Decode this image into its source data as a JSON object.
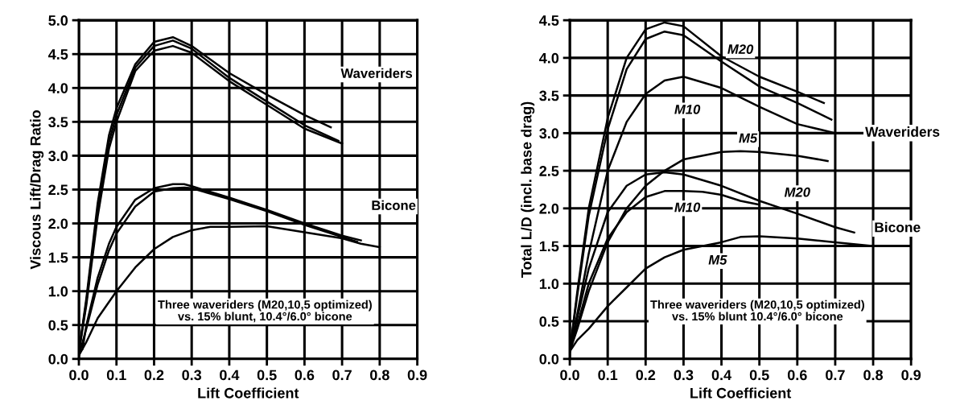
{
  "chart_data": [
    {
      "type": "line",
      "xlabel": "Lift Coefficient",
      "ylabel": "Viscous Lift/Drag Ratio",
      "xlim": [
        0,
        0.9
      ],
      "ylim": [
        0,
        5
      ],
      "xticks": [
        {
          "value": 0,
          "label": "0.0"
        },
        0.1,
        0.2,
        0.3,
        0.4,
        0.5,
        0.6,
        0.7,
        0.8,
        0.9
      ],
      "yticks": [
        {
          "value": 0,
          "label": "0.0"
        },
        0.5,
        {
          "value": 1,
          "label": "1.0"
        },
        1.5,
        {
          "value": 2,
          "label": "2.0"
        },
        2.5,
        {
          "value": 3,
          "label": "3.0"
        },
        3.5,
        {
          "value": 4,
          "label": "4.0"
        },
        4.5,
        {
          "value": 5,
          "label": "5.0"
        }
      ],
      "grid": true,
      "marker": "none",
      "line_style": "solid",
      "series": [
        {
          "color": "#000000",
          "x": [
            0,
            0.02,
            0.05,
            0.08,
            0.1,
            0.15,
            0.2,
            0.25,
            0.3,
            0.4,
            0.5,
            0.6,
            0.67
          ],
          "values": [
            0.1,
            0.9,
            2.3,
            3.3,
            3.7,
            4.35,
            4.68,
            4.75,
            4.62,
            4.22,
            3.9,
            3.6,
            3.42
          ]
        },
        {
          "color": "#000000",
          "x": [
            0,
            0.02,
            0.05,
            0.08,
            0.1,
            0.15,
            0.2,
            0.25,
            0.3,
            0.4,
            0.5,
            0.6,
            0.69
          ],
          "values": [
            0.1,
            0.85,
            2.2,
            3.2,
            3.6,
            4.3,
            4.62,
            4.7,
            4.58,
            4.15,
            3.8,
            3.45,
            3.22
          ]
        },
        {
          "color": "#000000",
          "x": [
            0,
            0.02,
            0.05,
            0.08,
            0.1,
            0.15,
            0.2,
            0.25,
            0.3,
            0.4,
            0.5,
            0.6,
            0.7
          ],
          "values": [
            0.1,
            0.8,
            2.1,
            3.1,
            3.5,
            4.25,
            4.55,
            4.62,
            4.52,
            4.1,
            3.75,
            3.4,
            3.18
          ]
        },
        {
          "color": "#000000",
          "x": [
            0.01,
            0.02,
            0.05,
            0.08,
            0.1,
            0.15,
            0.2,
            0.25,
            0.28,
            0.3,
            0.4,
            0.5,
            0.6,
            0.7,
            0.75
          ],
          "values": [
            0.15,
            0.5,
            1.2,
            1.7,
            1.95,
            2.35,
            2.52,
            2.58,
            2.58,
            2.55,
            2.38,
            2.2,
            2.0,
            1.82,
            1.75
          ]
        },
        {
          "color": "#000000",
          "x": [
            0,
            0.02,
            0.05,
            0.08,
            0.1,
            0.15,
            0.2,
            0.25,
            0.28,
            0.3,
            0.4,
            0.5,
            0.6,
            0.7,
            0.74
          ],
          "values": [
            0.05,
            0.45,
            1.1,
            1.6,
            1.85,
            2.25,
            2.47,
            2.52,
            2.53,
            2.52,
            2.36,
            2.18,
            1.98,
            1.8,
            1.73
          ]
        },
        {
          "color": "#000000",
          "x": [
            0,
            0.02,
            0.05,
            0.1,
            0.15,
            0.2,
            0.25,
            0.3,
            0.35,
            0.4,
            0.5,
            0.6,
            0.7,
            0.75,
            0.8
          ],
          "values": [
            0.05,
            0.25,
            0.6,
            1.0,
            1.35,
            1.62,
            1.8,
            1.9,
            1.95,
            1.95,
            1.96,
            1.87,
            1.78,
            1.7,
            1.65
          ]
        }
      ],
      "annotations": [
        "Waveriders",
        "Bicone",
        "Three waveriders (M20,10,5 optimized)\nvs. 15% blunt, 10.4°/6.0° bicone"
      ]
    },
    {
      "type": "line",
      "xlabel": "Lift Coefficient",
      "ylabel": "Total L/D (incl. base drag)",
      "xlim": [
        0,
        0.9
      ],
      "ylim": [
        0,
        4.5
      ],
      "xticks": [
        {
          "value": 0,
          "label": "0.0"
        },
        0.1,
        0.2,
        0.3,
        0.4,
        0.5,
        0.6,
        0.7,
        0.8,
        0.9
      ],
      "yticks": [
        {
          "value": 0,
          "label": "0.0"
        },
        0.5,
        {
          "value": 1,
          "label": "1.0"
        },
        1.5,
        {
          "value": 2,
          "label": "2.0"
        },
        2.5,
        {
          "value": 3,
          "label": "3.0"
        },
        3.5,
        {
          "value": 4,
          "label": "4.0"
        },
        4.5
      ],
      "grid": true,
      "marker": "none",
      "line_style": "solid",
      "series": [
        {
          "color": "#000000",
          "x": [
            0,
            0.02,
            0.05,
            0.1,
            0.15,
            0.2,
            0.25,
            0.3,
            0.4,
            0.5,
            0.6,
            0.67
          ],
          "values": [
            0.1,
            0.9,
            2.0,
            3.2,
            4.0,
            4.38,
            4.47,
            4.42,
            4.02,
            3.75,
            3.55,
            3.4
          ]
        },
        {
          "color": "#000000",
          "x": [
            0,
            0.02,
            0.05,
            0.1,
            0.15,
            0.2,
            0.25,
            0.3,
            0.4,
            0.5,
            0.6,
            0.69
          ],
          "values": [
            0.1,
            0.85,
            1.9,
            3.05,
            3.85,
            4.25,
            4.35,
            4.3,
            3.95,
            3.62,
            3.4,
            3.18
          ]
        },
        {
          "color": "#000000",
          "x": [
            0,
            0.02,
            0.05,
            0.1,
            0.15,
            0.2,
            0.25,
            0.3,
            0.4,
            0.5,
            0.6,
            0.7
          ],
          "values": [
            0.1,
            0.6,
            1.4,
            2.5,
            3.15,
            3.52,
            3.7,
            3.75,
            3.6,
            3.35,
            3.12,
            3.0
          ]
        },
        {
          "color": "#000000",
          "x": [
            0,
            0.02,
            0.05,
            0.1,
            0.15,
            0.2,
            0.25,
            0.3,
            0.4,
            0.45,
            0.5,
            0.6,
            0.68
          ],
          "values": [
            0.1,
            0.4,
            0.9,
            1.55,
            2.0,
            2.3,
            2.5,
            2.65,
            2.75,
            2.76,
            2.75,
            2.7,
            2.63
          ]
        },
        {
          "color": "#000000",
          "x": [
            0,
            0.02,
            0.05,
            0.1,
            0.15,
            0.2,
            0.25,
            0.3,
            0.4,
            0.5,
            0.6,
            0.7,
            0.75
          ],
          "values": [
            0.1,
            0.55,
            1.2,
            1.95,
            2.3,
            2.45,
            2.48,
            2.45,
            2.3,
            2.1,
            1.93,
            1.75,
            1.68
          ]
        },
        {
          "color": "#000000",
          "x": [
            0,
            0.02,
            0.05,
            0.1,
            0.15,
            0.2,
            0.25,
            0.3,
            0.35,
            0.4,
            0.45,
            0.5
          ],
          "values": [
            0.1,
            0.45,
            1.0,
            1.6,
            1.95,
            2.15,
            2.23,
            2.23,
            2.22,
            2.18,
            2.1,
            2.05
          ]
        },
        {
          "color": "#000000",
          "x": [
            0,
            0.02,
            0.05,
            0.1,
            0.15,
            0.2,
            0.25,
            0.3,
            0.4,
            0.45,
            0.5,
            0.6,
            0.7,
            0.8
          ],
          "values": [
            0.1,
            0.25,
            0.4,
            0.7,
            0.95,
            1.2,
            1.35,
            1.45,
            1.55,
            1.62,
            1.63,
            1.6,
            1.55,
            1.5
          ]
        }
      ],
      "annotations": [
        {
          "text": "M20",
          "x": 0.45,
          "y": 4.1
        },
        {
          "text": "M10",
          "x": 0.31,
          "y": 3.3
        },
        {
          "text": "M5",
          "x": 0.47,
          "y": 2.92
        },
        {
          "text": "M20",
          "x": 0.6,
          "y": 2.2
        },
        {
          "text": "M10",
          "x": 0.31,
          "y": 2.0
        },
        {
          "text": "M5",
          "x": 0.39,
          "y": 1.3
        },
        "Waveriders",
        "Bicone",
        "Three waveriders (M20,10,5 optimized)\nvs. 15% blunt 10.4°/6.0° bicone"
      ]
    }
  ]
}
